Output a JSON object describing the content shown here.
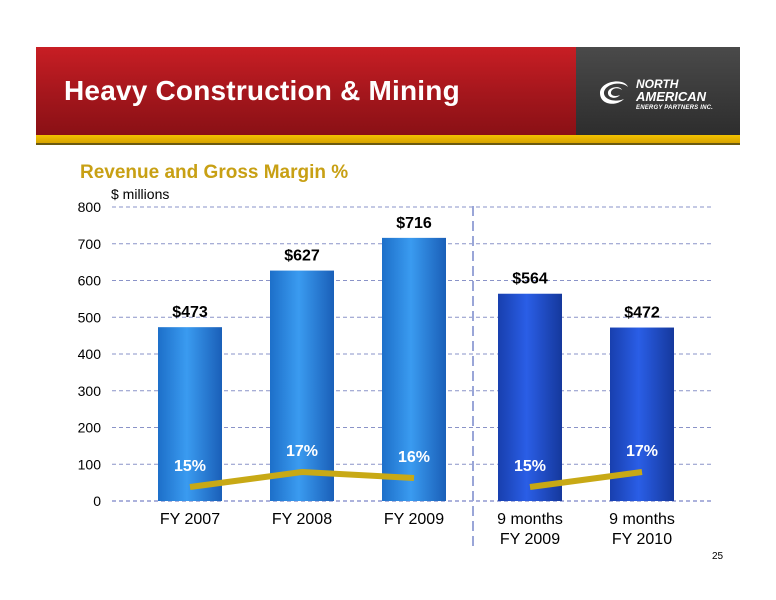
{
  "header": {
    "title": "Heavy Construction & Mining",
    "logo": {
      "line1": "NORTH",
      "line2": "AMERICAN",
      "line3": "ENERGY PARTNERS INC."
    }
  },
  "chart_data": {
    "type": "bar",
    "title": "Revenue and Gross Margin %",
    "ylabel": "$ millions",
    "xlabel": "",
    "ylim": [
      0,
      800
    ],
    "yticks": [
      0,
      100,
      200,
      300,
      400,
      500,
      600,
      700,
      800
    ],
    "grid": true,
    "categories": [
      [
        "FY 2007"
      ],
      [
        "FY 2008"
      ],
      [
        "FY 2009"
      ],
      [
        "9 months",
        "FY 2009"
      ],
      [
        "9 months",
        "FY 2010"
      ]
    ],
    "series": [
      {
        "values": [
          473,
          627,
          716,
          564,
          472
        ],
        "labels": [
          "$473",
          "$627",
          "$716",
          "$564",
          "$472"
        ]
      },
      {
        "values": [
          15,
          17,
          16,
          15,
          17
        ],
        "labels": [
          "15%",
          "17%",
          "16%",
          "15%",
          "17%"
        ],
        "line_segments": [
          [
            0,
            1,
            2
          ],
          [
            3,
            4
          ]
        ]
      }
    ],
    "colors": {
      "annual_bar": "#2a8ae0",
      "interim_bar": "#1e4fd4",
      "margin_line": "#c8a915",
      "grid": "#8a93c8"
    }
  },
  "page_number": "25"
}
